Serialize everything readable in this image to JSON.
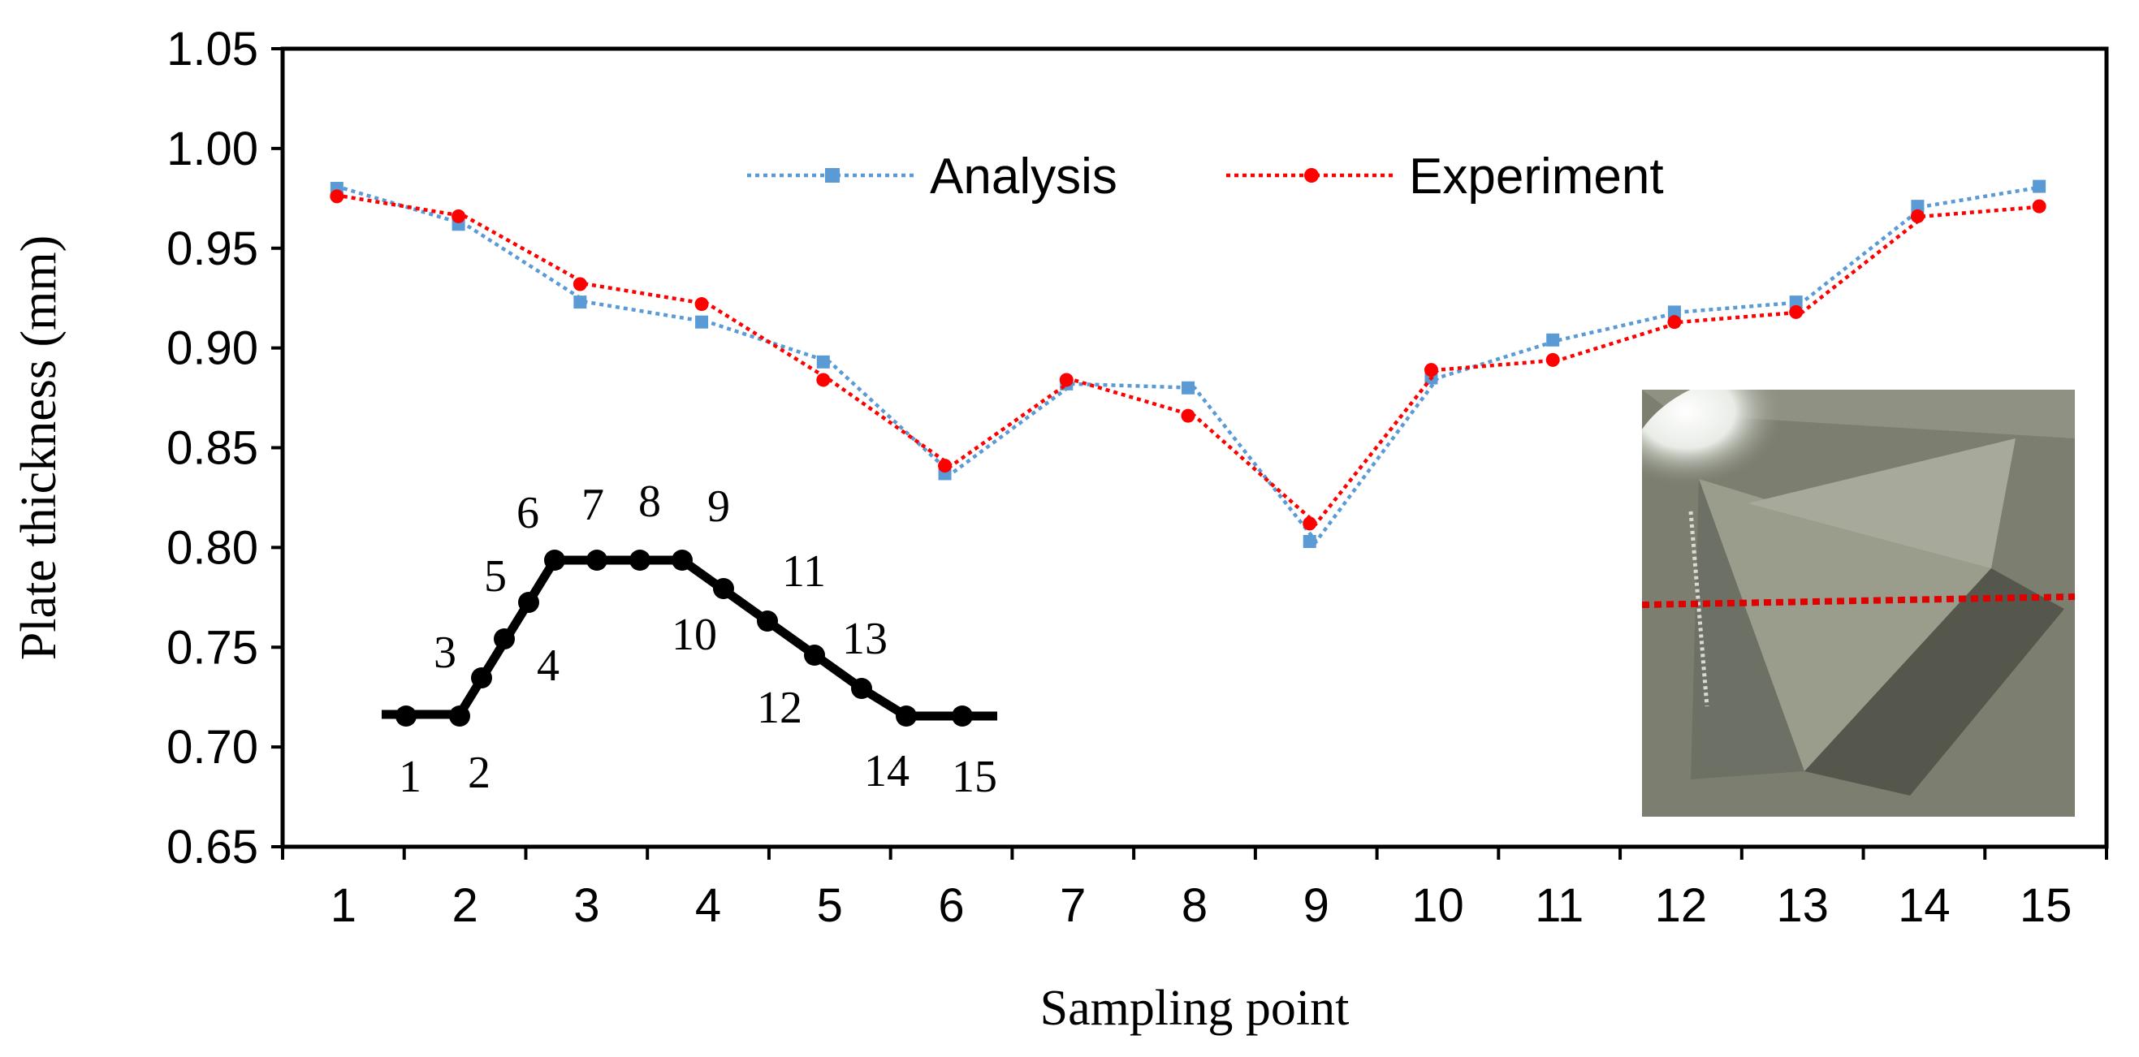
{
  "chart_data": {
    "type": "line",
    "title": "",
    "xlabel": "Sampling point",
    "ylabel": "Plate thickness (mm)",
    "categories": [
      "1",
      "2",
      "3",
      "4",
      "5",
      "6",
      "7",
      "8",
      "9",
      "10",
      "11",
      "12",
      "13",
      "14",
      "15"
    ],
    "ylim": [
      0.65,
      1.05
    ],
    "yticks": [
      "0.65",
      "0.70",
      "0.75",
      "0.80",
      "0.85",
      "0.90",
      "0.95",
      "1.00",
      "1.05"
    ],
    "grid": false,
    "legend_position": "top-center",
    "series": [
      {
        "name": "Analysis",
        "color": "#5b9bd5",
        "marker": "square",
        "line_style": "dotted",
        "values": [
          0.98,
          0.962,
          0.923,
          0.913,
          0.893,
          0.837,
          0.882,
          0.88,
          0.803,
          0.885,
          0.904,
          0.918,
          0.923,
          0.971,
          0.981
        ]
      },
      {
        "name": "Experiment",
        "color": "#ff0000",
        "marker": "circle",
        "line_style": "dotted",
        "values": [
          0.976,
          0.966,
          0.932,
          0.922,
          0.884,
          0.841,
          0.884,
          0.866,
          0.812,
          0.889,
          0.894,
          0.913,
          0.918,
          0.966,
          0.971
        ]
      }
    ],
    "annotations": {
      "inset_profile": {
        "description_labels": [
          "1",
          "2",
          "3",
          "4",
          "5",
          "6",
          "7",
          "8",
          "9",
          "10",
          "11",
          "12",
          "13",
          "14",
          "15"
        ]
      },
      "inset_photo": {
        "overlay_color": "#e00000"
      }
    }
  }
}
